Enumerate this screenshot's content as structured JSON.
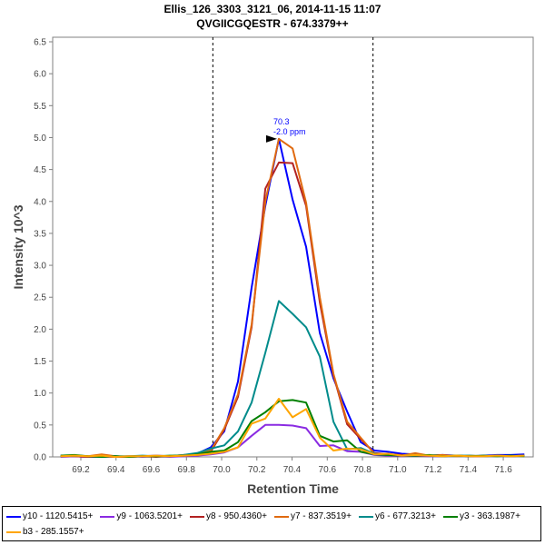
{
  "chart_data": {
    "type": "line",
    "title": "Ellis_126_3303_3121_06, 2014-11-15 11:07",
    "subtitle": "QVGIICGQESTR - 674.3379++",
    "xlabel": "Retention Time",
    "ylabel": "Intensity 10^3",
    "xlim": [
      69.04,
      71.77
    ],
    "ylim": [
      0,
      6.6
    ],
    "xticks": [
      "69.2",
      "69.4",
      "69.6",
      "69.8",
      "70.0",
      "70.2",
      "70.4",
      "70.6",
      "70.8",
      "71.0",
      "71.2",
      "71.4",
      "71.6"
    ],
    "yticks": [
      "0.0",
      "0.5",
      "1.0",
      "1.5",
      "2.0",
      "2.5",
      "3.0",
      "3.5",
      "4.0",
      "4.5",
      "5.0",
      "5.5",
      "6.0",
      "6.5"
    ],
    "boundaries": [
      69.95,
      70.86
    ],
    "annotation": {
      "x": 70.325,
      "y": 4.98,
      "line1": "70.3",
      "line2": "-2.0 ppm",
      "color": "#0000ff"
    },
    "x": [
      69.085,
      69.163,
      69.24,
      69.318,
      69.395,
      69.473,
      69.55,
      69.628,
      69.705,
      69.783,
      69.86,
      69.938,
      70.015,
      70.093,
      70.17,
      70.248,
      70.325,
      70.403,
      70.48,
      70.558,
      70.635,
      70.713,
      70.79,
      70.868,
      70.945,
      71.023,
      71.1,
      71.178,
      71.255,
      71.333,
      71.41,
      71.488,
      71.565,
      71.643,
      71.72
    ],
    "series": [
      {
        "name": "y10 - 1120.5415+",
        "color": "#0000ff",
        "values": [
          0.02,
          0.01,
          0,
          0,
          0.01,
          0,
          0.01,
          0.02,
          0.01,
          0.02,
          0.05,
          0.15,
          0.4,
          1.18,
          2.65,
          3.93,
          4.98,
          4.03,
          3.29,
          1.94,
          1.23,
          0.71,
          0.23,
          0.1,
          0.08,
          0.05,
          0.04,
          0.02,
          0.03,
          0.02,
          0.01,
          0.02,
          0.03,
          0.03,
          0.04
        ]
      },
      {
        "name": "y9 - 1063.5201+",
        "color": "#8a2be2",
        "values": [
          0,
          0.01,
          0,
          0,
          0,
          0.01,
          0,
          0.01,
          0,
          0.01,
          0.02,
          0.04,
          0.07,
          0.15,
          0.33,
          0.5,
          0.5,
          0.49,
          0.45,
          0.17,
          0.18,
          0.09,
          0.08,
          0.03,
          0.02,
          0.01,
          0.02,
          0.01,
          0.01,
          0.02,
          0.01,
          0.01,
          0.02,
          0.01,
          0.02
        ]
      },
      {
        "name": "y8 - 950.4360+",
        "color": "#b22222",
        "values": [
          0.01,
          0.01,
          0,
          0.01,
          0,
          0,
          0.01,
          0,
          0.01,
          0.02,
          0.03,
          0.08,
          0.43,
          0.94,
          2.03,
          4.2,
          4.61,
          4.6,
          3.93,
          2.42,
          1.28,
          0.51,
          0.28,
          0.06,
          0.04,
          0.03,
          0.02,
          0.02,
          0.01,
          0.02,
          0.01,
          0.01,
          0.02,
          0.01,
          0.02
        ]
      },
      {
        "name": "y7 - 837.3519+",
        "color": "#e06a10",
        "values": [
          0.01,
          0.02,
          0.01,
          0.04,
          0.01,
          0,
          0.01,
          0.01,
          0.01,
          0.03,
          0.04,
          0.1,
          0.45,
          0.98,
          2.07,
          4.0,
          4.98,
          4.83,
          3.98,
          2.5,
          1.3,
          0.55,
          0.3,
          0.05,
          0.03,
          0.02,
          0.06,
          0.02,
          0.03,
          0.01,
          0.02,
          0.01,
          0.02,
          0.01,
          0.02
        ]
      },
      {
        "name": "y6 - 677.3213+",
        "color": "#008b8b",
        "values": [
          0.01,
          0.02,
          0.01,
          0,
          0.01,
          0.01,
          0.02,
          0.01,
          0.01,
          0.03,
          0.06,
          0.13,
          0.18,
          0.4,
          0.85,
          1.63,
          2.44,
          2.24,
          2.03,
          1.57,
          0.55,
          0.12,
          0.14,
          0.05,
          0.03,
          0.02,
          0.03,
          0.02,
          0.01,
          0.02,
          0.02,
          0.01,
          0.02,
          0.01,
          0.02
        ]
      },
      {
        "name": "y3 - 363.1987+",
        "color": "#008000",
        "values": [
          0.02,
          0.03,
          0.01,
          0,
          0.01,
          0,
          0.01,
          0.01,
          0.02,
          0.02,
          0.04,
          0.08,
          0.1,
          0.23,
          0.56,
          0.7,
          0.87,
          0.89,
          0.85,
          0.33,
          0.24,
          0.26,
          0.08,
          0.04,
          0.03,
          0.02,
          0.02,
          0.03,
          0.01,
          0.02,
          0.01,
          0.02,
          0.01,
          0.02,
          0.01
        ]
      },
      {
        "name": "b3 - 285.1557+",
        "color": "#ffa500",
        "values": [
          0.01,
          0.02,
          0.01,
          0.02,
          0,
          0.01,
          0.01,
          0.02,
          0.01,
          0.02,
          0.03,
          0.05,
          0.08,
          0.15,
          0.52,
          0.6,
          0.91,
          0.62,
          0.75,
          0.3,
          0.1,
          0.13,
          0.12,
          0.04,
          0.05,
          0.02,
          0.03,
          0.02,
          0.01,
          0.02,
          0.01,
          0.01,
          0.02,
          0.01,
          0.02
        ]
      }
    ],
    "grid": false,
    "legend_position": "bottom"
  }
}
